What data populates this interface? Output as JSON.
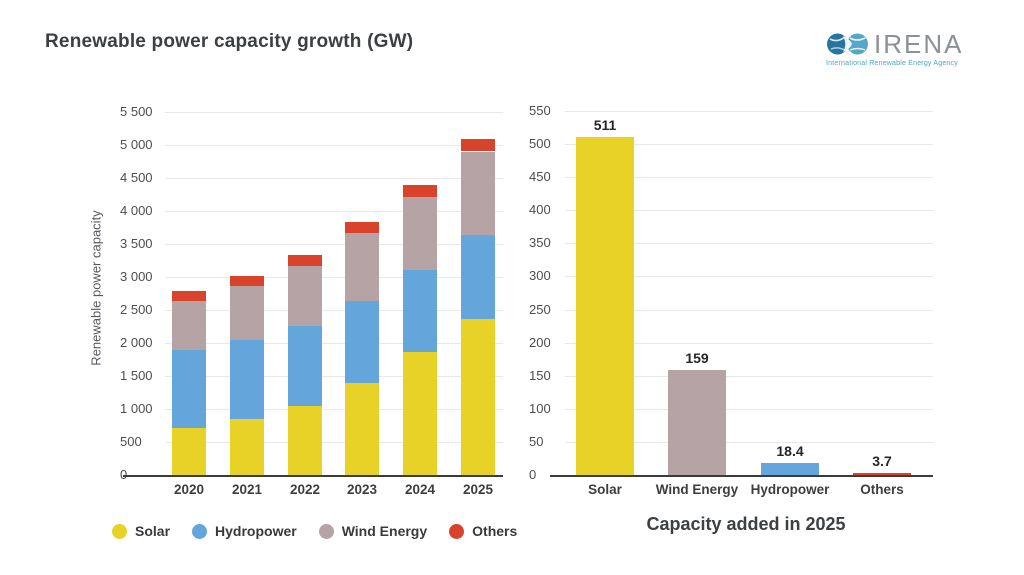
{
  "header": {
    "title": "Renewable power capacity growth (GW)",
    "logo": {
      "wordmark": "IRENA",
      "tagline": "International Renewable Energy Agency",
      "wordmark_color": "#8b9196",
      "tagline_color": "#4aa5c5",
      "globe_left_color": "#27759f",
      "globe_right_color": "#55a6c8"
    }
  },
  "legend": {
    "items": [
      {
        "label": "Solar",
        "color": "#e9d228"
      },
      {
        "label": "Hydropower",
        "color": "#64a5dc"
      },
      {
        "label": "Wind Energy",
        "color": "#b5a3a6"
      },
      {
        "label": "Others",
        "color": "#d9432c"
      }
    ]
  },
  "chart_data": [
    {
      "type": "bar",
      "stacked": true,
      "title": "",
      "ylabel": "Renewable power capacity",
      "xlabel": "",
      "categories": [
        "2020",
        "2021",
        "2022",
        "2023",
        "2024",
        "2025"
      ],
      "series": [
        {
          "name": "Solar",
          "color": "#e9d228",
          "values": [
            720,
            855,
            1055,
            1390,
            1860,
            2370
          ]
        },
        {
          "name": "Hydropower",
          "color": "#64a5dc",
          "values": [
            1180,
            1195,
            1210,
            1255,
            1255,
            1270
          ]
        },
        {
          "name": "Wind Energy",
          "color": "#b5a3a6",
          "values": [
            740,
            815,
            905,
            1025,
            1100,
            1260
          ]
        },
        {
          "name": "Others",
          "color": "#d9432c",
          "values": [
            150,
            155,
            165,
            165,
            180,
            185
          ]
        }
      ],
      "totals": [
        2790,
        3020,
        3335,
        3835,
        4395,
        5085
      ],
      "ylim": [
        0,
        5500
      ],
      "grid": true,
      "legend_position": "bottom",
      "yticks": [
        {
          "value": 0,
          "label": "0"
        },
        {
          "value": 500,
          "label": "500"
        },
        {
          "value": 1000,
          "label": "1 000"
        },
        {
          "value": 1500,
          "label": "1 500"
        },
        {
          "value": 2000,
          "label": "2 000"
        },
        {
          "value": 2500,
          "label": "2 500"
        },
        {
          "value": 3000,
          "label": "3 000"
        },
        {
          "value": 3500,
          "label": "3 500"
        },
        {
          "value": 4000,
          "label": "4 000"
        },
        {
          "value": 4500,
          "label": "4 500"
        },
        {
          "value": 5000,
          "label": "5 000"
        },
        {
          "value": 5500,
          "label": "5 500"
        }
      ]
    },
    {
      "type": "bar",
      "stacked": false,
      "title": "Capacity added in 2025",
      "ylabel": "",
      "xlabel": "",
      "categories": [
        "Solar",
        "Wind Energy",
        "Hydropower",
        "Others"
      ],
      "values": [
        511,
        159,
        18.4,
        3.7
      ],
      "value_labels": [
        "511",
        "159",
        "18.4",
        "3.7"
      ],
      "bar_colors": [
        "#e9d228",
        "#b5a3a6",
        "#64a5dc",
        "#d9432c"
      ],
      "ylim": [
        0,
        550
      ],
      "grid": true,
      "yticks": [
        {
          "value": 0,
          "label": "0"
        },
        {
          "value": 50,
          "label": "50"
        },
        {
          "value": 100,
          "label": "100"
        },
        {
          "value": 150,
          "label": "150"
        },
        {
          "value": 200,
          "label": "200"
        },
        {
          "value": 250,
          "label": "250"
        },
        {
          "value": 300,
          "label": "300"
        },
        {
          "value": 350,
          "label": "350"
        },
        {
          "value": 400,
          "label": "400"
        },
        {
          "value": 450,
          "label": "450"
        },
        {
          "value": 500,
          "label": "500"
        },
        {
          "value": 550,
          "label": "550"
        }
      ]
    }
  ],
  "colors": {
    "background": "#ffffff",
    "gridline": "#e8e8e8",
    "axis_line": "#3b3b3b",
    "tick_text": "#4d4d4d",
    "title_text": "#3c4043"
  }
}
